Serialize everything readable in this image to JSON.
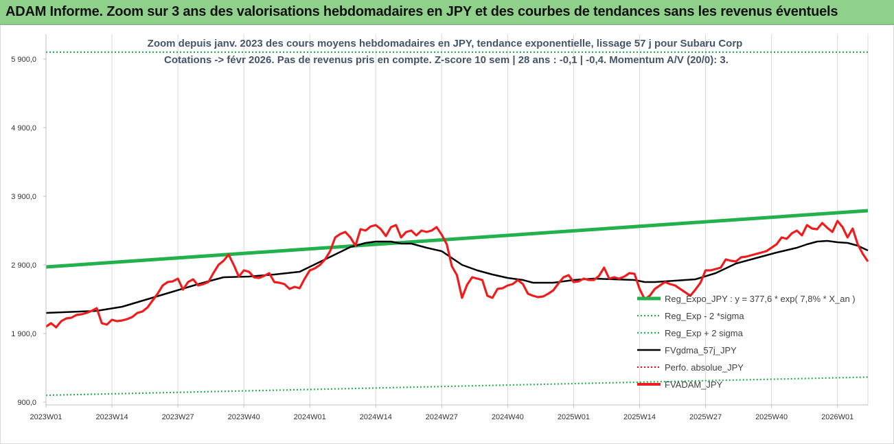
{
  "banner": {
    "title": "ADAM Informe. Zoom sur 3 ans des valorisations hebdomadaires en JPY et des courbes de tendances sans les revenus éventuels"
  },
  "colors": {
    "banner_bg": "#8fd18b",
    "trend_green": "#22b14c",
    "price_red": "#ee1c1c",
    "average_black": "#000000",
    "band_green": "#22b14c",
    "perfo_red": "#ff0000"
  },
  "chart_data": {
    "type": "line",
    "title_lines": [
      "Zoom depuis janv. 2023 des cours moyens hebdomadaires en JPY, tendance exponentielle, lissage 57 j pour Subaru Corp",
      "Cotations -> févr 2026.  Pas de revenus pris en compte. Z-score 10 sem | 28 ans : -0,1 | -0,4. Momentum A/V (20/0): 3."
    ],
    "y_ticks": [
      "900,0",
      "1 900,0",
      "2 900,0",
      "3 900,0",
      "4 900,0",
      "5 900,0"
    ],
    "y_tick_values": [
      900,
      1900,
      2900,
      3900,
      4900,
      5900
    ],
    "ylim": [
      900,
      6400
    ],
    "x_range": [
      0,
      162
    ],
    "x_ticks": [
      "2023W01",
      "2023W14",
      "2023W27",
      "2023W40",
      "2024W01",
      "2024W14",
      "2024W27",
      "2024W40",
      "2025W01",
      "2025W14",
      "2025W27",
      "2025W40",
      "2026W01"
    ],
    "x_tick_positions": [
      0,
      13,
      26,
      39,
      52,
      65,
      78,
      91,
      104,
      117,
      130,
      143,
      156
    ],
    "grid": "vertical",
    "legend_position": "right",
    "legend": [
      {
        "label": "Reg_Expo_JPY : y = 377,6 * exp( 7,8% *  X_an )",
        "style": "thick-green"
      },
      {
        "label": "Reg_Exp - 2 *sigma",
        "style": "dotted-green"
      },
      {
        "label": "Reg_Exp + 2 sigma",
        "style": "dotted-green"
      },
      {
        "label": "FVgdma_57j_JPY",
        "style": "black"
      },
      {
        "label": "Perfo. absolue_JPY",
        "style": "dotted-red"
      },
      {
        "label": "FVADAM_JPY",
        "style": "thick-red"
      }
    ],
    "series": [
      {
        "name": "Reg_Expo_JPY",
        "x": [
          0,
          162
        ],
        "y": [
          2870,
          3690
        ]
      },
      {
        "name": "Reg_Exp - 2 *sigma",
        "x": [
          0,
          162
        ],
        "y": [
          1000,
          1265
        ]
      },
      {
        "name": "Reg_Exp + 2 sigma",
        "x": [
          0,
          162
        ],
        "y": [
          6000,
          6000
        ]
      },
      {
        "name": "FVgdma_57j_JPY",
        "x": [
          0,
          5,
          10,
          15,
          20,
          25,
          30,
          35,
          40,
          45,
          50,
          55,
          60,
          63,
          65,
          68,
          70,
          72,
          75,
          78,
          80,
          82,
          85,
          88,
          91,
          94,
          96,
          100,
          104,
          108,
          112,
          116,
          118,
          120,
          124,
          128,
          132,
          136,
          140,
          144,
          148,
          150,
          152,
          154,
          156,
          158,
          160,
          162
        ],
        "y": [
          2200,
          2215,
          2230,
          2290,
          2400,
          2510,
          2620,
          2720,
          2730,
          2760,
          2800,
          2980,
          3160,
          3220,
          3240,
          3240,
          3210,
          3210,
          3150,
          3100,
          3000,
          2900,
          2820,
          2760,
          2710,
          2680,
          2640,
          2640,
          2680,
          2700,
          2690,
          2680,
          2650,
          2650,
          2670,
          2690,
          2780,
          2920,
          3000,
          3080,
          3150,
          3200,
          3240,
          3250,
          3230,
          3220,
          3180,
          3110
        ]
      },
      {
        "name": "FVADAM_JPY",
        "x": [
          0,
          1,
          2,
          3,
          4,
          5,
          6,
          7,
          8,
          9,
          10,
          11,
          12,
          13,
          14,
          15,
          16,
          17,
          18,
          19,
          20,
          21,
          22,
          23,
          24,
          25,
          26,
          27,
          28,
          29,
          30,
          31,
          32,
          33,
          34,
          35,
          36,
          37,
          38,
          39,
          40,
          41,
          42,
          43,
          44,
          45,
          46,
          47,
          48,
          49,
          50,
          51,
          52,
          53,
          54,
          55,
          56,
          57,
          58,
          59,
          60,
          61,
          62,
          63,
          64,
          65,
          66,
          67,
          68,
          69,
          70,
          71,
          72,
          73,
          74,
          75,
          76,
          77,
          78,
          79,
          80,
          81,
          82,
          83,
          84,
          85,
          86,
          87,
          88,
          89,
          90,
          91,
          92,
          93,
          94,
          95,
          96,
          97,
          98,
          99,
          100,
          101,
          102,
          103,
          104,
          105,
          106,
          107,
          108,
          109,
          110,
          111,
          112,
          113,
          114,
          115,
          116,
          117,
          118,
          119,
          120,
          121,
          122,
          123,
          124,
          125,
          126,
          127,
          128,
          129,
          130,
          131,
          132,
          133,
          134,
          135,
          136,
          137,
          138,
          139,
          140,
          141,
          142,
          143,
          144,
          145,
          146,
          147,
          148,
          149,
          150,
          151,
          152,
          153,
          154,
          155,
          156,
          157,
          158,
          159,
          160,
          161,
          162
        ],
        "y": [
          2000,
          2050,
          1990,
          2080,
          2120,
          2130,
          2170,
          2180,
          2200,
          2230,
          2270,
          2050,
          2030,
          2100,
          2080,
          2090,
          2110,
          2140,
          2200,
          2220,
          2280,
          2380,
          2480,
          2600,
          2650,
          2660,
          2700,
          2540,
          2650,
          2690,
          2600,
          2620,
          2650,
          2780,
          2900,
          2960,
          3050,
          2900,
          2730,
          2820,
          2800,
          2720,
          2710,
          2740,
          2780,
          2650,
          2640,
          2620,
          2550,
          2580,
          2560,
          2700,
          2820,
          2850,
          2900,
          2980,
          3100,
          3300,
          3350,
          3380,
          3300,
          3180,
          3420,
          3400,
          3460,
          3480,
          3420,
          3320,
          3450,
          3480,
          3300,
          3380,
          3400,
          3330,
          3400,
          3380,
          3400,
          3450,
          3340,
          3200,
          2880,
          2750,
          2420,
          2610,
          2720,
          2700,
          2680,
          2450,
          2420,
          2550,
          2560,
          2600,
          2620,
          2680,
          2620,
          2480,
          2450,
          2430,
          2440,
          2480,
          2530,
          2630,
          2720,
          2750,
          2650,
          2660,
          2700,
          2680,
          2680,
          2740,
          2860,
          2700,
          2720,
          2700,
          2730,
          2780,
          2770,
          2550,
          2400,
          2450,
          2550,
          2600,
          2650,
          2620,
          2600,
          2550,
          2500,
          2450,
          2540,
          2640,
          2820,
          2820,
          2840,
          2860,
          2980,
          2960,
          2950,
          3010,
          3020,
          3040,
          3060,
          3080,
          3100,
          3150,
          3200,
          3300,
          3280,
          3360,
          3400,
          3330,
          3480,
          3430,
          3420,
          3510,
          3440,
          3380,
          3540,
          3450,
          3300,
          3430,
          3200,
          3060,
          2950
        ]
      }
    ]
  }
}
